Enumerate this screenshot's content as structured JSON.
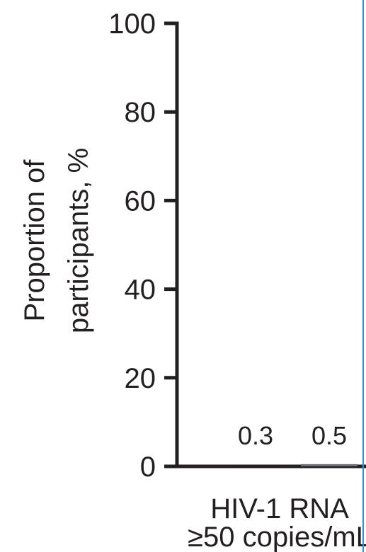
{
  "chart_data": {
    "type": "bar",
    "title": "",
    "ylabel": [
      "Proportion of",
      "participants, %"
    ],
    "ylim": [
      0,
      100
    ],
    "yticks": [
      0,
      20,
      40,
      60,
      80,
      100
    ],
    "categories": [
      {
        "line1": "HIV-1 RNA",
        "line2": "≥50 copies/mL"
      }
    ],
    "series": [
      {
        "values": [
          0.3
        ]
      },
      {
        "values": [
          0.5
        ]
      }
    ],
    "data_labels": [
      "0.3",
      "0.5"
    ],
    "grid": false,
    "colors": {
      "axis": "#231f20",
      "text": "#231f20",
      "divider": "#3b8fd4",
      "bars": [
        "#231f20",
        "#6d6e71"
      ]
    }
  }
}
